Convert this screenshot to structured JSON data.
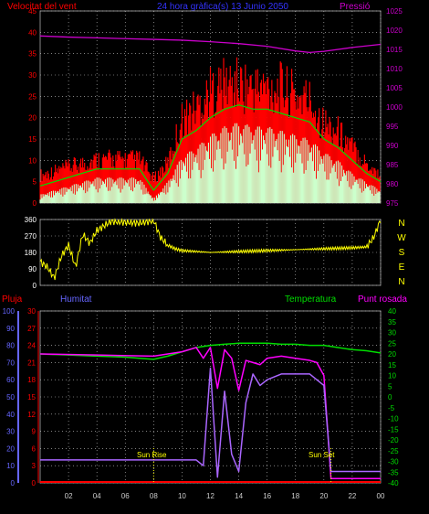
{
  "header": {
    "wind_title": "Velocitat del vent",
    "date_title": "24 hora gràfica(s) 13 Junio 2050",
    "pressure_title": "Pressió"
  },
  "colors": {
    "background": "#000000",
    "wind_gust": "#ff0000",
    "wind_avg": "#00dd00",
    "wind_min": "#ccffcc",
    "pressure": "#cc00cc",
    "direction": "#ffff00",
    "rain": "#ff0000",
    "humidity": "#aa66ff",
    "temperature": "#00dd00",
    "dewpoint": "#ff00ff",
    "blue_title": "#3333ff",
    "axis_red": "#ff0000",
    "axis_purple": "#cc00cc",
    "axis_yellow": "#ffff00",
    "axis_blue": "#6666ff",
    "axis_green": "#00dd00",
    "frame": "#888888",
    "grid": "#cccccc",
    "title_purple": "#cc00cc"
  },
  "bottom_header": {
    "rain_label": "Pluja",
    "humidity_label": "Humitat",
    "temp_label": "Temperatura",
    "dew_label": "Punt rosada"
  },
  "x_ticks": [
    "02",
    "04",
    "06",
    "08",
    "10",
    "12",
    "14",
    "16",
    "18",
    "20",
    "22",
    "00"
  ],
  "annotations": {
    "sunrise": "Sun Rise",
    "sunset": "Sun Set"
  },
  "chart_data": [
    {
      "type": "line",
      "id": "wind_pressure",
      "x_range_hours": [
        0,
        24
      ],
      "y_left": {
        "ticks": [
          "0",
          "5",
          "10",
          "15",
          "20",
          "25",
          "30",
          "35",
          "40",
          "45"
        ],
        "ylim": [
          0,
          45
        ]
      },
      "y_right": {
        "ticks": [
          "975",
          "980",
          "985",
          "990",
          "995",
          "1000",
          "1005",
          "1010",
          "1015",
          "1020",
          "1025"
        ],
        "ylim": [
          975,
          1025
        ]
      },
      "series": [
        {
          "key": "gust",
          "x": [
            0,
            1,
            2,
            3,
            4,
            5,
            6,
            7,
            8,
            9,
            10,
            11,
            12,
            13,
            14,
            15,
            16,
            17,
            18,
            19,
            20,
            21,
            22,
            23,
            24
          ],
          "values": [
            7,
            8,
            9,
            10,
            11,
            11,
            11,
            11,
            6,
            10,
            21,
            24,
            28,
            30,
            30,
            29,
            29,
            29,
            27,
            26,
            20,
            18,
            14,
            10,
            7
          ]
        },
        {
          "key": "avg",
          "x": [
            0,
            1,
            2,
            3,
            4,
            5,
            6,
            7,
            8,
            9,
            10,
            11,
            12,
            13,
            14,
            15,
            16,
            17,
            18,
            19,
            20,
            21,
            22,
            23,
            24
          ],
          "values": [
            4,
            5,
            6,
            7,
            8,
            8,
            8,
            8,
            3,
            7,
            15,
            17,
            20,
            22,
            23,
            22,
            22,
            21,
            20,
            19,
            15,
            13,
            10,
            7,
            5
          ]
        },
        {
          "key": "min",
          "x": [
            0,
            1,
            2,
            3,
            4,
            5,
            6,
            7,
            8,
            9,
            10,
            11,
            12,
            13,
            14,
            15,
            16,
            17,
            18,
            19,
            20,
            21,
            22,
            23,
            24
          ],
          "values": [
            2,
            3,
            4,
            5,
            6,
            6,
            6,
            6,
            1,
            5,
            11,
            13,
            16,
            18,
            19,
            18,
            18,
            17,
            16,
            15,
            12,
            10,
            7,
            5,
            3
          ]
        },
        {
          "key": "pressure",
          "x": [
            0,
            2,
            4,
            6,
            8,
            10,
            12,
            14,
            16,
            18,
            19,
            20,
            22,
            24
          ],
          "values": [
            1018.5,
            1018.2,
            1018.0,
            1017.8,
            1017.6,
            1017.4,
            1017.0,
            1016.5,
            1015.8,
            1014.6,
            1014.2,
            1014.5,
            1015.5,
            1016.3
          ]
        }
      ]
    },
    {
      "type": "line",
      "id": "wind_direction",
      "y_left": {
        "ticks": [
          "0",
          "90",
          "180",
          "270",
          "360"
        ],
        "ylim": [
          0,
          360
        ]
      },
      "y_right_labels": [
        "N",
        "W",
        "S",
        "E",
        "N"
      ],
      "series": [
        {
          "key": "direction",
          "x": [
            0,
            0.5,
            1,
            1.5,
            2,
            2.5,
            3,
            3.5,
            4,
            5,
            6,
            7,
            8,
            8.5,
            9,
            9.5,
            10,
            12,
            14,
            16,
            18,
            20,
            22,
            23,
            23.5,
            24
          ],
          "values": [
            130,
            100,
            40,
            160,
            220,
            100,
            280,
            230,
            300,
            350,
            345,
            340,
            355,
            260,
            220,
            200,
            190,
            180,
            185,
            190,
            195,
            200,
            205,
            210,
            260,
            360
          ]
        }
      ]
    },
    {
      "type": "line",
      "id": "rain_humidity_temp",
      "y_left_rain": {
        "ticks": [
          "0",
          "10",
          "20",
          "30",
          "40",
          "50",
          "60",
          "70",
          "80",
          "90",
          "100"
        ],
        "ylim": [
          0,
          100
        ]
      },
      "y_left_hum": {
        "ticks": [
          "0",
          "3",
          "6",
          "9",
          "12",
          "15",
          "18",
          "21",
          "24",
          "27",
          "30"
        ],
        "ylim": [
          0,
          30
        ]
      },
      "y_right": {
        "ticks": [
          "-40",
          "-35",
          "-30",
          "-25",
          "-20",
          "-15",
          "-10",
          "-5",
          "0",
          "5",
          "10",
          "15",
          "20",
          "25",
          "30",
          "35",
          "40"
        ],
        "ylim": [
          -40,
          40
        ]
      },
      "series": [
        {
          "key": "rain",
          "x": [
            0,
            24
          ],
          "values": [
            0.5,
            0.5
          ]
        },
        {
          "key": "humidity",
          "x": [
            0,
            3,
            6,
            7,
            8,
            9,
            10,
            11,
            11.5,
            12,
            12.5,
            13,
            13.5,
            14,
            14.5,
            15,
            15.5,
            16,
            17,
            18,
            19,
            19.5,
            20,
            20.5,
            21,
            22,
            23,
            24
          ],
          "values": [
            4,
            4,
            4,
            4,
            4,
            4,
            4,
            4,
            3,
            20,
            1,
            16,
            5,
            2,
            14,
            19,
            17,
            18,
            19,
            19,
            19,
            18,
            17,
            2,
            2,
            2,
            2,
            2
          ]
        },
        {
          "key": "temperature",
          "x": [
            0,
            2,
            4,
            6,
            7,
            8,
            9,
            10,
            11,
            12,
            13,
            14,
            15,
            16,
            17,
            18,
            19,
            20,
            21,
            22,
            23,
            24
          ],
          "values": [
            20,
            19.5,
            19,
            18.5,
            18,
            17.5,
            19,
            21,
            23,
            24,
            24.5,
            25,
            25,
            25,
            24.5,
            24.5,
            24,
            24,
            23,
            22,
            21.5,
            20.5
          ]
        },
        {
          "key": "dewpoint",
          "x": [
            0,
            4,
            8,
            10,
            11,
            11.5,
            12,
            12.5,
            13,
            13.5,
            14,
            14.5,
            15,
            15.5,
            16,
            17,
            18,
            19,
            19.5,
            20,
            20.5,
            21,
            22,
            24
          ],
          "values": [
            20,
            19.5,
            19,
            21,
            23,
            18,
            23,
            4,
            22,
            18,
            3,
            17,
            16,
            15,
            18,
            19,
            18,
            17,
            16,
            10,
            -38,
            -38,
            -38,
            -38
          ]
        }
      ]
    }
  ]
}
